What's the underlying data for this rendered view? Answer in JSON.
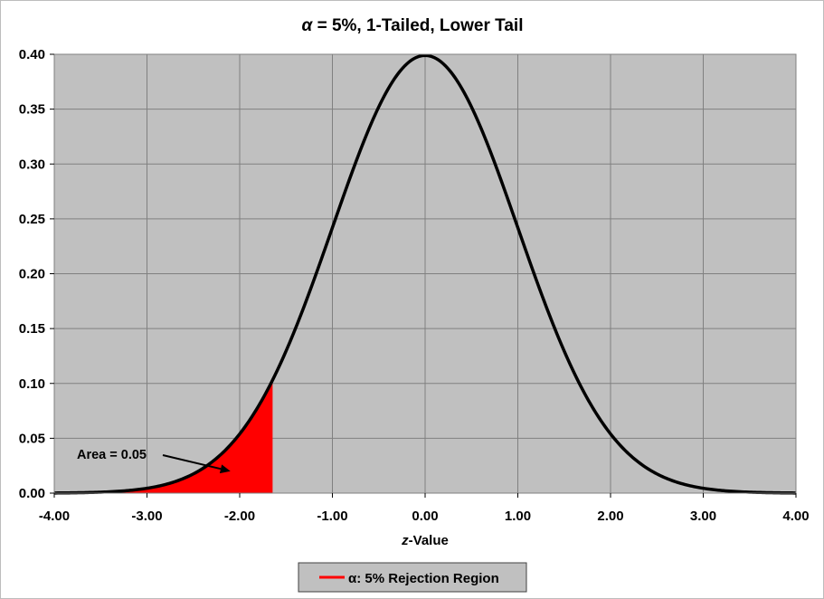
{
  "chart_data": {
    "type": "area",
    "title_symbol": "α",
    "title_rest": " = 5%, 1-Tailed, Lower Tail",
    "xlabel_italic": "z",
    "xlabel_rest": "-Value",
    "ylabel": "",
    "xlim": [
      -4,
      4
    ],
    "ylim": [
      0,
      0.4
    ],
    "x_ticks": [
      "-4.00",
      "-3.00",
      "-2.00",
      "-1.00",
      "0.00",
      "1.00",
      "2.00",
      "3.00",
      "4.00"
    ],
    "y_ticks": [
      "0.00",
      "0.05",
      "0.10",
      "0.15",
      "0.20",
      "0.25",
      "0.30",
      "0.35",
      "0.40"
    ],
    "grid": true,
    "plot_background": "#c0c0c0",
    "grid_color": "#808080",
    "series": [
      {
        "kind": "curve",
        "distribution": "standard normal density",
        "mean": 0,
        "sd": 1,
        "color": "#000000",
        "x": [
          -4.0,
          -3.5,
          -3.0,
          -2.5,
          -2.0,
          -1.645,
          -1.5,
          -1.0,
          -0.5,
          0.0,
          0.5,
          1.0,
          1.5,
          2.0,
          2.5,
          3.0,
          3.5,
          4.0
        ],
        "y": [
          0.0001,
          0.0009,
          0.0044,
          0.0175,
          0.054,
          0.1031,
          0.1295,
          0.242,
          0.3521,
          0.3989,
          0.3521,
          0.242,
          0.1295,
          0.054,
          0.0175,
          0.0044,
          0.0009,
          0.0001
        ]
      },
      {
        "kind": "shaded_area",
        "name": "α: 5% Rejection Region",
        "color": "#ff0000",
        "x_from": -4.0,
        "x_to": -1.645,
        "area": 0.05
      }
    ],
    "annotations": [
      {
        "text": "Area = 0.05",
        "arrow_to": [
          -2.1,
          0.02
        ]
      }
    ],
    "legend": {
      "position": "bottom-center",
      "entries": [
        {
          "label": "α: 5% Rejection Region",
          "color": "#ff0000"
        }
      ]
    }
  }
}
